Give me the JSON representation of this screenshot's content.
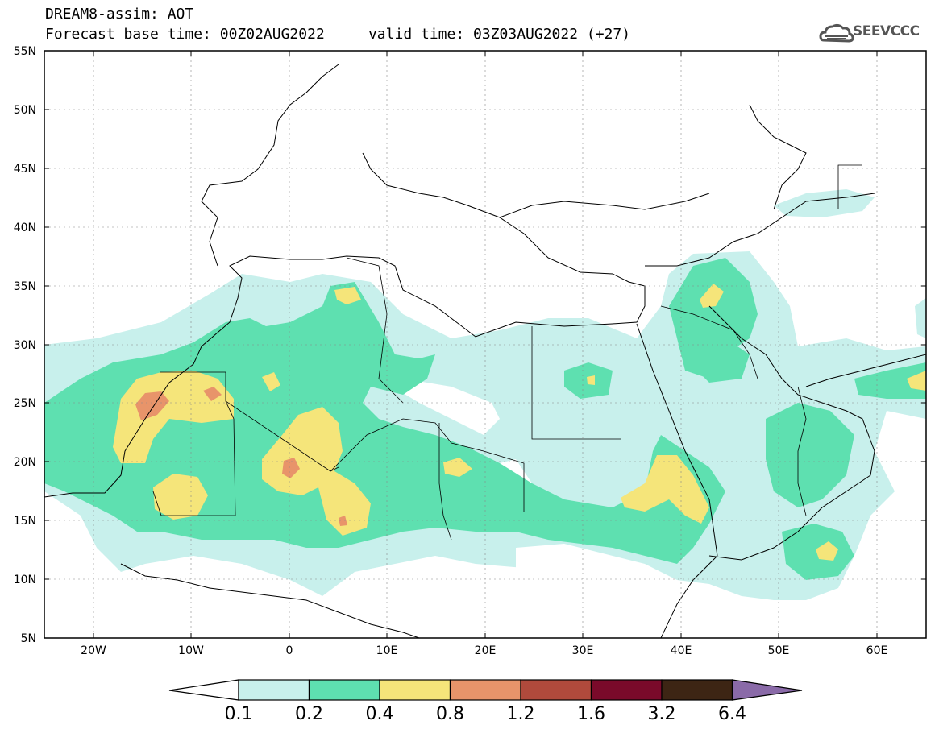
{
  "title": {
    "line1": "DREAM8-assim: AOT",
    "line2": "Forecast base time: 00Z02AUG2022     valid time: 03Z03AUG2022 (+27)"
  },
  "logo": {
    "text": "SEEVCCC",
    "icon": "cloud-icon"
  },
  "map": {
    "lon_range": [
      -25,
      65
    ],
    "lat_range": [
      5,
      55
    ],
    "lat_ticks": [
      "5N",
      "10N",
      "15N",
      "20N",
      "25N",
      "30N",
      "35N",
      "40N",
      "45N",
      "50N",
      "55N"
    ],
    "lon_ticks": [
      "20W",
      "10W",
      "0",
      "10E",
      "20E",
      "30E",
      "40E",
      "50E",
      "60E"
    ],
    "grid": true
  },
  "legend": {
    "labels": [
      "0.1",
      "0.2",
      "0.4",
      "0.8",
      "1.2",
      "1.6",
      "3.2",
      "6.4"
    ],
    "colors": [
      "#ffffff",
      "#c8f0ec",
      "#5ee0b0",
      "#f5e57a",
      "#e8946a",
      "#b04a3c",
      "#7a0a2a",
      "#3d2514",
      "#8a6aa8"
    ]
  },
  "colors": {
    "c01": "#c8f0ec",
    "c02": "#5ee0b0",
    "c04": "#f5e57a",
    "c08": "#e8946a"
  }
}
